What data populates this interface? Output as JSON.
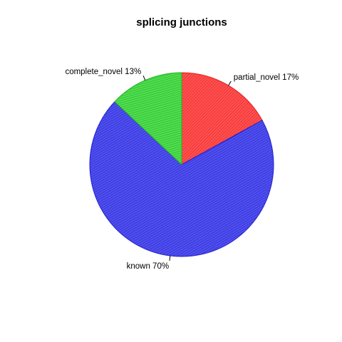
{
  "chart_data": {
    "type": "pie",
    "title": "splicing junctions",
    "slices": [
      {
        "label": "partial_novel 17%",
        "value": 17,
        "fill": "#ff5050",
        "stroke": "#e02020"
      },
      {
        "label": "known 70%",
        "value": 70,
        "fill": "#5050ee",
        "stroke": "#2020cc"
      },
      {
        "label": "complete_novel 13%",
        "value": 13,
        "fill": "#50dd50",
        "stroke": "#20b020"
      }
    ],
    "start_angle_deg": 90,
    "direction": "clockwise",
    "fill_pattern": "hatched"
  }
}
